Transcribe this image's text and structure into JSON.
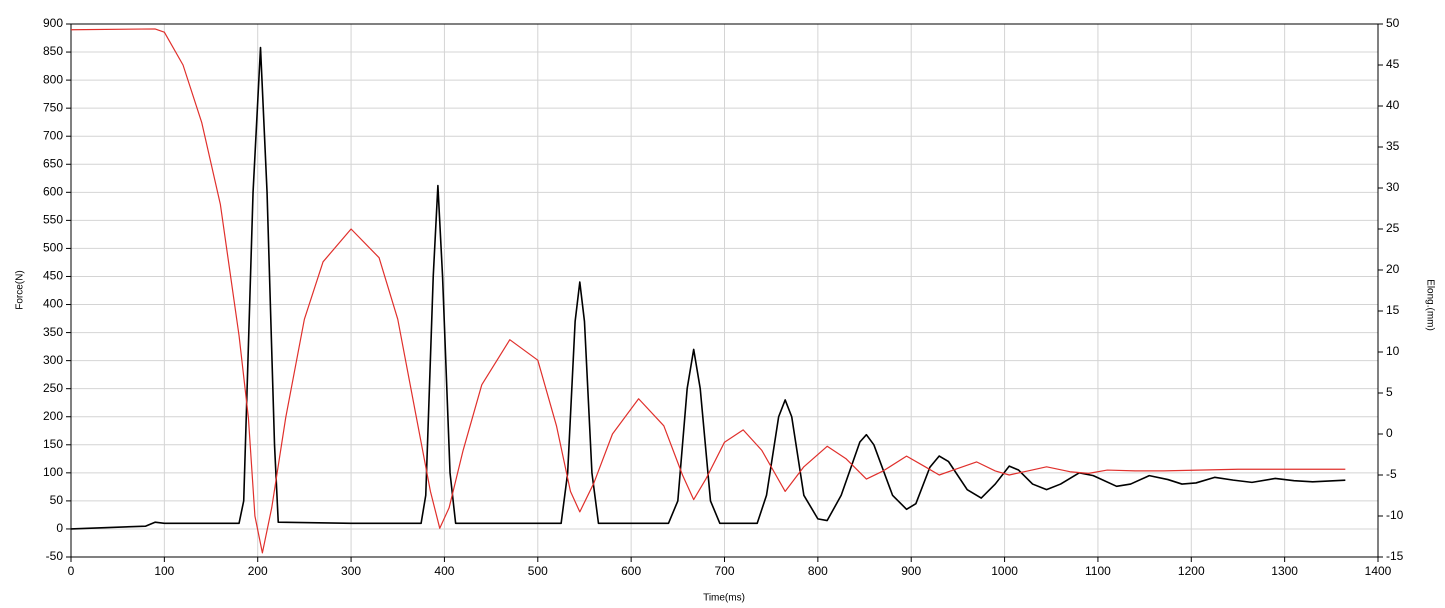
{
  "chart_data": {
    "type": "line",
    "x_label": "Time(ms)",
    "y_label": "Force(N)",
    "y2_label": "Elong.(mm)",
    "xlim": [
      0,
      1400
    ],
    "xticks": [
      0,
      100,
      200,
      300,
      400,
      500,
      600,
      700,
      800,
      900,
      1000,
      1100,
      1200,
      1300,
      1400
    ],
    "ylim": [
      -50,
      900
    ],
    "yticks": [
      -50,
      0,
      50,
      100,
      150,
      200,
      250,
      300,
      350,
      400,
      450,
      500,
      550,
      600,
      650,
      700,
      750,
      800,
      850,
      900
    ],
    "y2lim": [
      -15,
      50
    ],
    "y2ticks": [
      -15,
      -10,
      -5,
      0,
      5,
      10,
      15,
      20,
      25,
      30,
      35,
      40,
      45,
      50
    ],
    "grid": true,
    "series": [
      {
        "color": "#000000",
        "x": [
          0,
          80,
          90,
          100,
          180,
          185,
          195,
          203,
          210,
          218,
          222,
          300,
          375,
          380,
          388,
          393,
          398,
          406,
          412,
          500,
          525,
          532,
          540,
          545,
          550,
          558,
          565,
          640,
          650,
          660,
          667,
          674,
          685,
          695,
          735,
          745,
          758,
          765,
          772,
          785,
          800,
          810,
          825,
          845,
          852,
          860,
          880,
          895,
          905,
          920,
          930,
          940,
          960,
          975,
          990,
          1005,
          1015,
          1030,
          1045,
          1060,
          1080,
          1095,
          1120,
          1135,
          1155,
          1175,
          1190,
          1205,
          1225,
          1245,
          1265,
          1290,
          1310,
          1330,
          1365
        ],
        "values": [
          0,
          5,
          12,
          10,
          10,
          50,
          600,
          858,
          600,
          150,
          12,
          10,
          10,
          60,
          450,
          612,
          450,
          100,
          10,
          10,
          10,
          100,
          370,
          440,
          370,
          100,
          10,
          10,
          50,
          250,
          320,
          250,
          50,
          10,
          10,
          60,
          200,
          230,
          200,
          60,
          18,
          15,
          60,
          155,
          168,
          150,
          60,
          35,
          45,
          110,
          130,
          120,
          70,
          55,
          80,
          112,
          105,
          80,
          70,
          80,
          100,
          95,
          76,
          80,
          95,
          88,
          80,
          82,
          92,
          87,
          83,
          90,
          86,
          84,
          87
        ]
      },
      {
        "color": "#e0302c",
        "axis": "y2",
        "x": [
          0,
          90,
          100,
          120,
          140,
          160,
          180,
          190,
          197,
          205,
          215,
          230,
          250,
          270,
          300,
          330,
          350,
          370,
          385,
          395,
          405,
          420,
          440,
          470,
          500,
          520,
          535,
          545,
          560,
          580,
          608,
          635,
          655,
          667,
          680,
          700,
          720,
          740,
          765,
          785,
          810,
          830,
          852,
          870,
          895,
          915,
          930,
          950,
          970,
          990,
          1005,
          1025,
          1045,
          1070,
          1090,
          1110,
          1140,
          1170,
          1250,
          1365
        ],
        "values": [
          49.3,
          49.4,
          49,
          45,
          38,
          28,
          12,
          2,
          -10,
          -14.5,
          -9,
          2,
          14,
          21,
          25,
          21.5,
          14,
          2,
          -7,
          -11.5,
          -9,
          -2,
          6,
          11.5,
          9,
          1,
          -7,
          -9.5,
          -6,
          0,
          4.3,
          1,
          -5,
          -8,
          -5.5,
          -1,
          0.5,
          -2,
          -7,
          -4,
          -1.5,
          -3,
          -5.5,
          -4.5,
          -2.7,
          -4,
          -5,
          -4.2,
          -3.4,
          -4.5,
          -5,
          -4.5,
          -4,
          -4.6,
          -4.8,
          -4.4,
          -4.5,
          -4.5,
          -4.3,
          -4.3
        ]
      }
    ]
  }
}
